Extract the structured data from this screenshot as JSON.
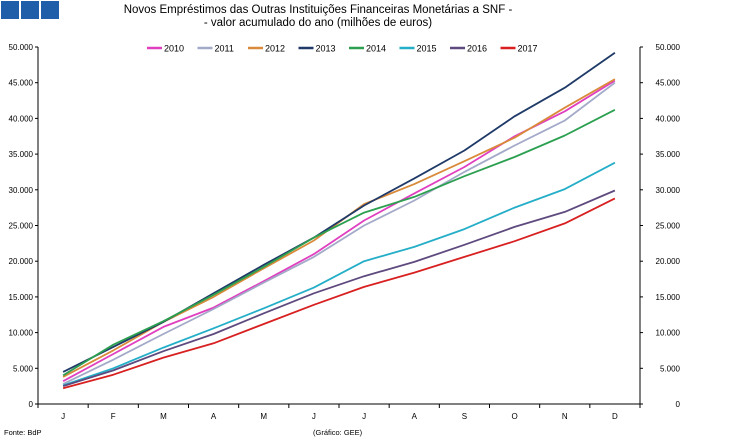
{
  "logo": {
    "blocks": 3,
    "color": "#1f5ea8"
  },
  "footer": {
    "source": "Fonte: BdP",
    "graph": "(Gráfico: GEE)"
  },
  "chart_data": {
    "type": "line",
    "title": [
      "Novos Empréstimos das Outras Instituições Financeiras Monetárias a SNF -",
      "- valor acumulado do ano (milhões de euros)"
    ],
    "categories": [
      "J",
      "F",
      "M",
      "A",
      "M",
      "J",
      "J",
      "A",
      "S",
      "O",
      "N",
      "D"
    ],
    "ylim": [
      0,
      50000
    ],
    "yticks": [
      0,
      5000,
      10000,
      15000,
      20000,
      25000,
      30000,
      35000,
      40000,
      45000,
      50000
    ],
    "ytick_labels": [
      "0",
      "5.000",
      "10.000",
      "15.000",
      "20.000",
      "25.000",
      "30.000",
      "35.000",
      "40.000",
      "45.000",
      "50.000"
    ],
    "series": [
      {
        "name": "2010",
        "color": "#e040c0",
        "values": [
          3200,
          7000,
          10800,
          13500,
          17200,
          21000,
          25700,
          29500,
          33200,
          37500,
          41000,
          45300
        ]
      },
      {
        "name": "2011",
        "color": "#a3a9c8",
        "values": [
          2800,
          6200,
          9800,
          13300,
          17000,
          20600,
          25000,
          28500,
          32500,
          36200,
          39700,
          45000
        ]
      },
      {
        "name": "2012",
        "color": "#d98a3a",
        "values": [
          3800,
          7500,
          11500,
          15000,
          19000,
          22900,
          28000,
          30800,
          34000,
          37300,
          41500,
          45500
        ]
      },
      {
        "name": "2013",
        "color": "#1f3a68",
        "values": [
          4500,
          8000,
          11500,
          15500,
          19500,
          23300,
          27800,
          31600,
          35500,
          40300,
          44300,
          49200
        ]
      },
      {
        "name": "2014",
        "color": "#2ca050",
        "values": [
          4000,
          8300,
          11600,
          15300,
          19200,
          23300,
          26800,
          29000,
          31900,
          34600,
          37600,
          41200
        ]
      },
      {
        "name": "2015",
        "color": "#25aec8",
        "values": [
          2600,
          5000,
          7900,
          10600,
          13400,
          16300,
          20000,
          22000,
          24500,
          27500,
          30100,
          33800
        ]
      },
      {
        "name": "2016",
        "color": "#5e4a7e",
        "values": [
          2500,
          4700,
          7400,
          9800,
          12700,
          15500,
          17900,
          19900,
          22300,
          24800,
          26900,
          29900
        ]
      },
      {
        "name": "2017",
        "color": "#d82020",
        "values": [
          2200,
          4100,
          6500,
          8500,
          11200,
          13900,
          16400,
          18400,
          20600,
          22800,
          25300,
          28800
        ]
      }
    ]
  }
}
